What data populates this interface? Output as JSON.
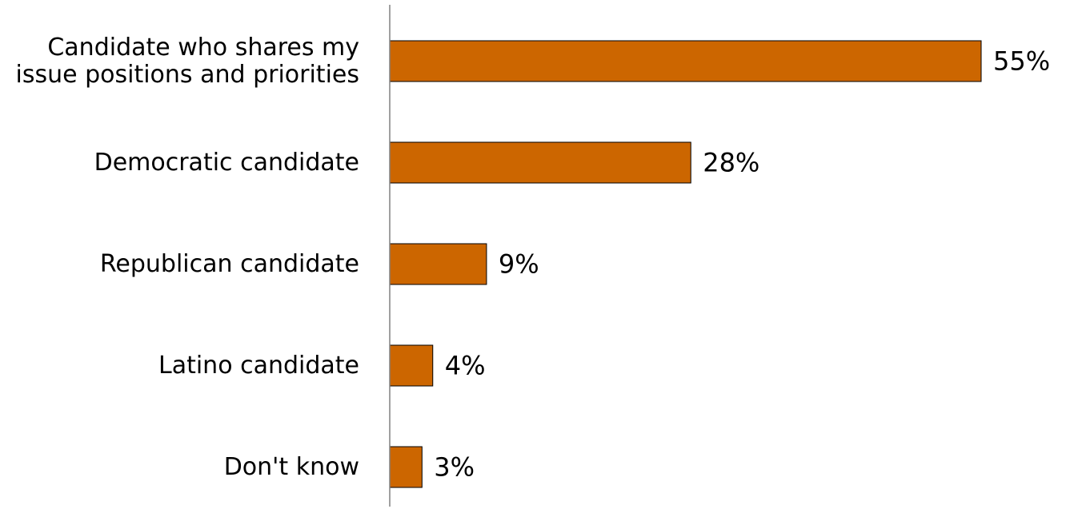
{
  "chart_data": {
    "type": "bar",
    "orientation": "horizontal",
    "categories": [
      [
        "Candidate who shares my",
        "issue positions and priorities"
      ],
      [
        "Democratic candidate"
      ],
      [
        "Republican candidate"
      ],
      [
        "Latino candidate"
      ],
      [
        "Don't know"
      ]
    ],
    "values": [
      55,
      28,
      9,
      4,
      3
    ],
    "value_labels": [
      "55%",
      "28%",
      "9%",
      "4%",
      "3%"
    ],
    "unit": "%",
    "xlim": [
      0,
      55
    ],
    "grid": false,
    "legend": "none",
    "bar_color": "#CC6600",
    "bar_outline_color": "#000000",
    "axis_color": "#808080"
  }
}
